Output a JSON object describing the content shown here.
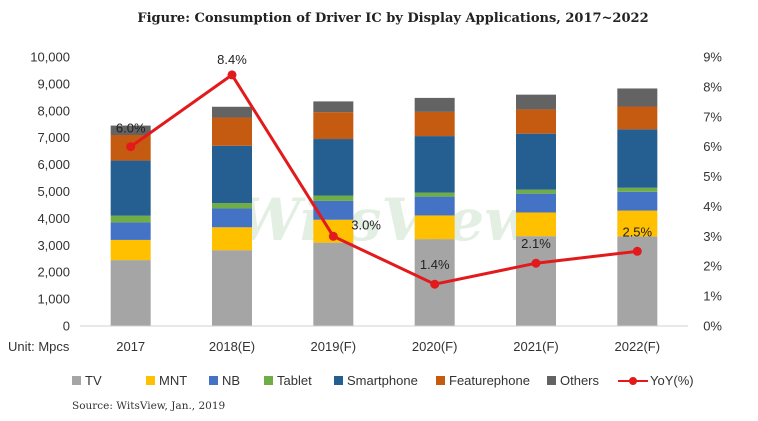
{
  "chart_data": {
    "type": "bar",
    "stacked": true,
    "title": "Figure: Consumption of Driver IC by Display Applications, 2017~2022",
    "unit_label": "Unit: Mpcs",
    "source": "Source: WitsView, Jan., 2019",
    "watermark": "WitsView",
    "categories": [
      "2017",
      "2018(E)",
      "2019(F)",
      "2020(F)",
      "2021(F)",
      "2022(F)"
    ],
    "y_ticks": [
      "0",
      "1,000",
      "2,000",
      "3,000",
      "4,000",
      "5,000",
      "6,000",
      "7,000",
      "8,000",
      "9,000",
      "10,000"
    ],
    "y2_ticks": [
      "0%",
      "1%",
      "2%",
      "3%",
      "4%",
      "5%",
      "6%",
      "7%",
      "8%",
      "9%"
    ],
    "ylim": [
      0,
      10000
    ],
    "y2lim": [
      0,
      9
    ],
    "series": [
      {
        "name": "TV",
        "color": "#a5a5a5",
        "values": [
          2450,
          2820,
          3100,
          3230,
          3340,
          3330
        ]
      },
      {
        "name": "MNT",
        "color": "#ffc000",
        "values": [
          750,
          850,
          850,
          880,
          880,
          960
        ]
      },
      {
        "name": "NB",
        "color": "#4472c4",
        "values": [
          650,
          700,
          700,
          700,
          700,
          700
        ]
      },
      {
        "name": "Tablet",
        "color": "#70ad47",
        "values": [
          250,
          200,
          200,
          150,
          150,
          150
        ]
      },
      {
        "name": "Smartphone",
        "color": "#255e91",
        "values": [
          2050,
          2130,
          2100,
          2100,
          2080,
          2170
        ]
      },
      {
        "name": "Featurephone",
        "color": "#c55a11",
        "values": [
          950,
          1050,
          1000,
          900,
          900,
          850
        ]
      },
      {
        "name": "Others",
        "color": "#636363",
        "values": [
          350,
          400,
          400,
          520,
          550,
          670
        ]
      }
    ],
    "line_series": {
      "name": "YoY(%)",
      "color": "#e31a1c",
      "values": [
        6.0,
        8.4,
        3.0,
        1.4,
        2.1,
        2.5
      ],
      "labels": [
        "6.0%",
        "8.4%",
        "3.0%",
        "1.4%",
        "2.1%",
        "2.5%"
      ]
    },
    "legend_position": "bottom",
    "grid": false
  }
}
